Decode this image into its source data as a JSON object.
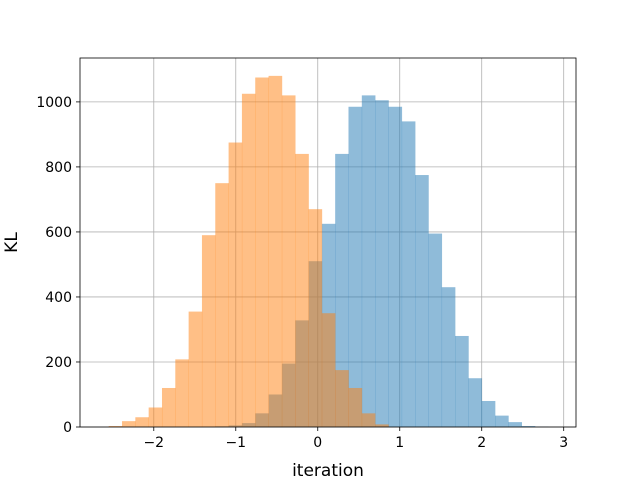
{
  "chart_data": {
    "type": "histogram",
    "xlabel": "iteration",
    "ylabel": "KL",
    "xlim": [
      -2.9,
      3.15
    ],
    "ylim": [
      0,
      1135
    ],
    "xticks": [
      -2,
      -1,
      0,
      1,
      2,
      3
    ],
    "xtick_labels": [
      "−2",
      "−1",
      "0",
      "1",
      "2",
      "3"
    ],
    "yticks": [
      0,
      200,
      400,
      600,
      800,
      1000
    ],
    "ytick_labels": [
      "0",
      "200",
      "400",
      "600",
      "800",
      "1000"
    ],
    "grid": true,
    "bin_width": 0.1625,
    "series": [
      {
        "color": "#1f77b4",
        "alpha": 0.5,
        "bin_start": -1.25,
        "counts": [
          2,
          5,
          12,
          42,
          100,
          195,
          328,
          510,
          625,
          840,
          985,
          1020,
          1005,
          985,
          940,
          775,
          595,
          430,
          280,
          150,
          80,
          35,
          15,
          3,
          1
        ]
      },
      {
        "color": "#ff7f0e",
        "alpha": 0.5,
        "bin_start": -2.55,
        "counts": [
          3,
          18,
          30,
          60,
          120,
          208,
          355,
          590,
          750,
          875,
          1025,
          1075,
          1080,
          1020,
          840,
          670,
          350,
          175,
          120,
          42,
          8
        ]
      }
    ]
  }
}
